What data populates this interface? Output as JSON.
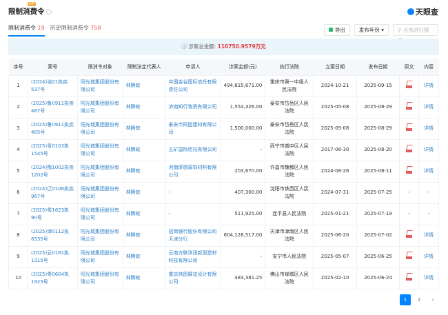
{
  "header": {
    "title": "限制消费令",
    "vip_badge": "VIP",
    "brand": "天眼查"
  },
  "tabs": [
    {
      "label": "限制消费令",
      "count": "19"
    },
    {
      "label": "历史限制消费令",
      "count": "758"
    }
  ],
  "toolbar": {
    "export": "导出",
    "year_filter": "发布年份",
    "search_placeholder": "点击进行搜索"
  },
  "summary": {
    "label": "涉案总金额:",
    "value": "110750.9579万元"
  },
  "columns": [
    "序号",
    "案号",
    "限消令对象",
    "限制法定代表人",
    "申请人",
    "涉案金额(元)",
    "执行法院",
    "立案日期",
    "发布日期",
    "原文",
    "内容"
  ],
  "rows": [
    {
      "no": "1",
      "case": "(2024)渝01执疾537号",
      "target": "阳光城集团股份有限公司",
      "rep": "林腾蛟",
      "applicant": "中国金谷国际信托有限责任公司",
      "amount": "494,815,671.00",
      "court": "重庆市第一中级人民法院",
      "filed": "2024-10-21",
      "published": "2025-09-15",
      "pdf": true,
      "detail": "详情"
    },
    {
      "no": "2",
      "case": "(2025)鲁0911执疾487号",
      "target": "阳光城集团股份有限公司",
      "rep": "林腾蛟",
      "applicant": "济南知行物资有限公司",
      "amount": "1,554,326.00",
      "court": "泰安市岱岳区人民法院",
      "filed": "2025-05-08",
      "published": "2025-08-29",
      "pdf": true,
      "detail": "详情"
    },
    {
      "no": "3",
      "case": "(2025)鲁0911执疾485号",
      "target": "阳光城集团股份有限公司",
      "rep": "林腾蛟",
      "applicant": "泰安市同固建材有限公司",
      "amount": "1,500,000.00",
      "court": "泰安市岱岳区人民法院",
      "filed": "2025-05-08",
      "published": "2025-08-29",
      "pdf": true,
      "detail": "详情"
    },
    {
      "no": "4",
      "case": "(2025)青0103执1545号",
      "target": "阳光城集团股份有限公司",
      "rep": "林腾蛟",
      "applicant": "五矿国际信托有限公司",
      "amount": "-",
      "court": "西宁市城中区人民法院",
      "filed": "2017-08-30",
      "published": "2025-08-20",
      "pdf": true,
      "detail": "详情"
    },
    {
      "no": "5",
      "case": "(2024)豫1002执疾1202号",
      "target": "阳光城集团股份有限公司",
      "rep": "林腾蛟",
      "applicant": "河南厚德装饰材料有限公司",
      "amount": "203,670.00",
      "court": "许昌市魏都区人民法院",
      "filed": "2024-08-26",
      "published": "2025-08-11",
      "pdf": true,
      "detail": "详情"
    },
    {
      "no": "6",
      "case": "(2024)辽0106执疾967号",
      "target": "阳光城集团股份有限公司",
      "rep": "林腾蛟",
      "applicant": "-",
      "amount": "407,300.00",
      "court": "沈阳市铁西区人民法院",
      "filed": "2024-07-31",
      "published": "2025-07-25",
      "pdf": false,
      "detail": "-"
    },
    {
      "no": "7",
      "case": "(2025)粤1623执90号",
      "target": "阳光城集团股份有限公司",
      "rep": "林腾蛟",
      "applicant": "-",
      "amount": "511,925.00",
      "court": "连平县人民法院",
      "filed": "2025-01-21",
      "published": "2025-07-19",
      "pdf": false,
      "detail": "-"
    },
    {
      "no": "8",
      "case": "(2025)津0112执8335号",
      "target": "阳光城集团股份有限公司",
      "rep": "林腾蛟",
      "applicant": "招商银行股份有限公司天津分行",
      "amount": "604,128,517.00",
      "court": "天津市津南区人民法院",
      "filed": "2025-06-20",
      "published": "2025-07-02",
      "pdf": true,
      "detail": "详情"
    },
    {
      "no": "9",
      "case": "(2025)云0181执1315号",
      "target": "阳光城集团股份有限公司",
      "rep": "林腾蛟",
      "applicant": "云南方联洋润新型建材科技有限公司",
      "amount": "-",
      "court": "安宁市人民法院",
      "filed": "2025-05-07",
      "published": "2025-06-25",
      "pdf": true,
      "detail": "详情"
    },
    {
      "no": "10",
      "case": "(2025)粤0604执1925号",
      "target": "阳光城集团股份有限公司",
      "rep": "林腾蛟",
      "applicant": "重庆炜图展览设计有限公司",
      "amount": "483,381.25",
      "court": "佛山市禅城区人民法院",
      "filed": "2025-02-10",
      "published": "2025-06-24",
      "pdf": true,
      "detail": "详情"
    }
  ],
  "pagination": {
    "current": "1",
    "pages": [
      "1",
      "2"
    ],
    "next": "›"
  }
}
